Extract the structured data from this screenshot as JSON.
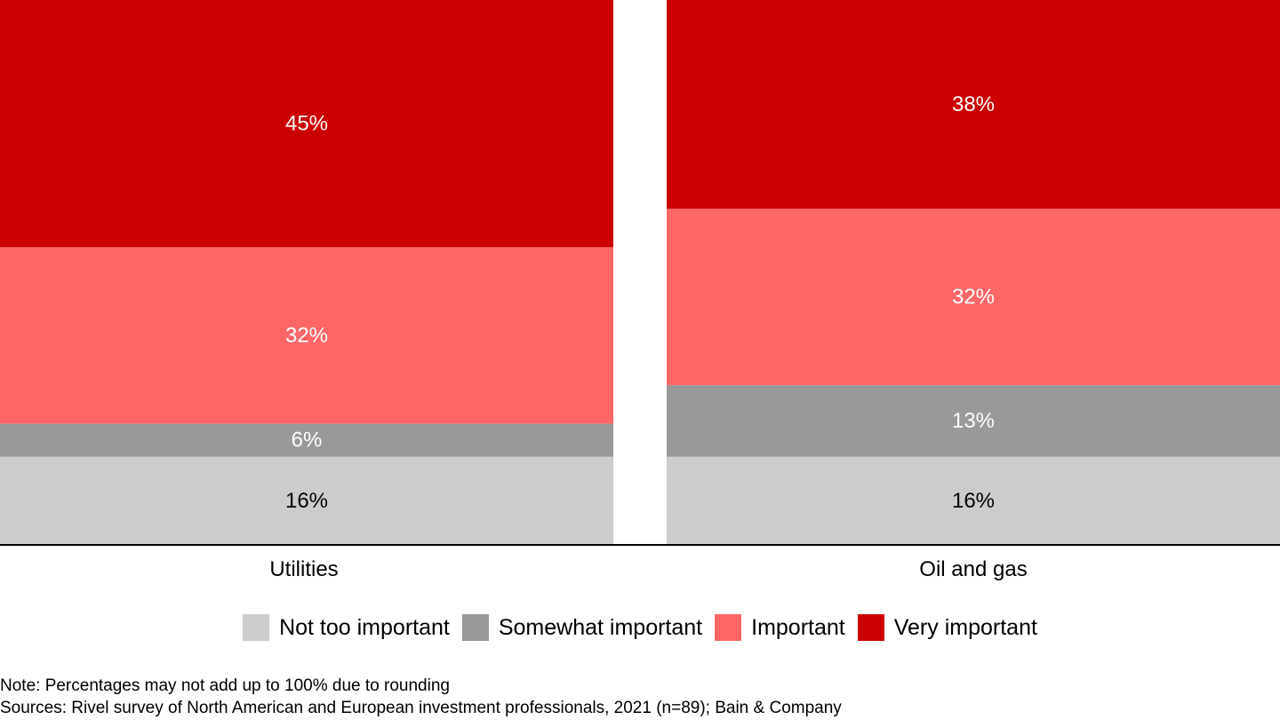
{
  "chart_data": {
    "type": "bar",
    "stacked": true,
    "categories": [
      "Utilities",
      "Oil and gas"
    ],
    "series": [
      {
        "name": "Not too important",
        "color": "#cccccc",
        "label_color": "#000000",
        "values": [
          16,
          16
        ],
        "labels": [
          "16%",
          "16%"
        ]
      },
      {
        "name": "Somewhat important",
        "color": "#999999",
        "label_color": "#ffffff",
        "values": [
          6,
          13
        ],
        "labels": [
          "6%",
          "13%"
        ]
      },
      {
        "name": "Important",
        "color": "#ff6666",
        "label_color": "#ffffff",
        "values": [
          32,
          32
        ],
        "labels": [
          "32%",
          "32%"
        ]
      },
      {
        "name": "Very important",
        "color": "#cc0000",
        "label_color": "#ffffff",
        "values": [
          45,
          38
        ],
        "labels": [
          "45%",
          "38%"
        ]
      }
    ],
    "ylim": [
      0,
      100
    ],
    "legend_position": "bottom"
  },
  "notes": {
    "note": "Note: Percentages may not add up to 100% due to rounding",
    "sources": "Sources: Rivel survey of North American and European investment professionals, 2021 (n=89); Bain & Company"
  }
}
